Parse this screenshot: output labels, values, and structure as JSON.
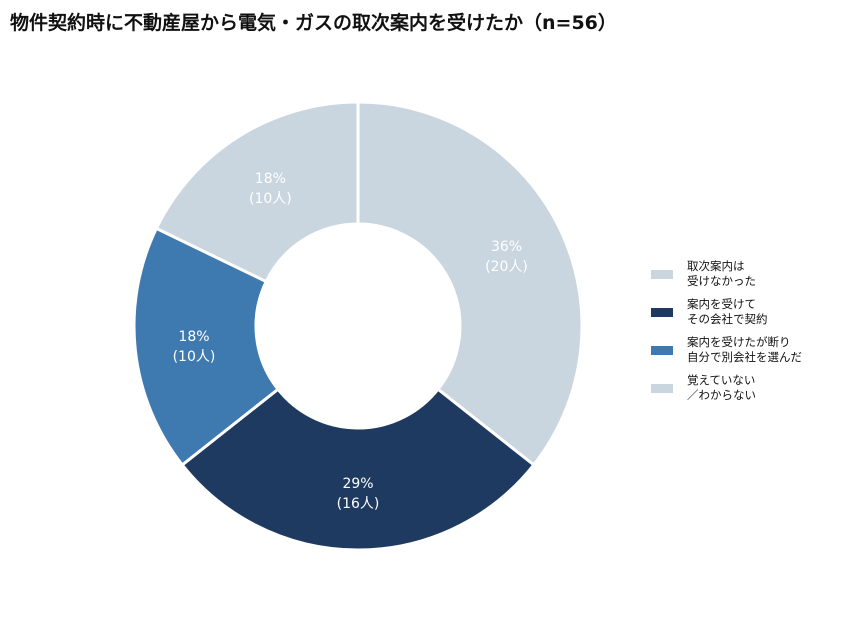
{
  "title": "物件契約時に不動産屋から電気・ガスの取次案内を受けたか（n=56）",
  "chart_data": {
    "type": "pie",
    "title": "物件契約時に不動産屋から電気・ガスの取次案内を受けたか（n=56）",
    "donut": true,
    "legend_position": "right",
    "series": [
      {
        "name": "取次案内は\n受けなかった",
        "value": 36,
        "count_label": "(20人)",
        "pct_label": "36%",
        "color": "#c9d5df"
      },
      {
        "name": "案内を受けて\nその会社で契約",
        "value": 29,
        "count_label": "(16人)",
        "pct_label": "29%",
        "color": "#1f3a60"
      },
      {
        "name": "案内を受けたが断り\n自分で別会社を選んだ",
        "value": 18,
        "count_label": "(10人)",
        "pct_label": "18%",
        "color": "#3e7ab0"
      },
      {
        "name": "覚えていない\n／わからない",
        "value": 18,
        "count_label": "(10人)",
        "pct_label": "18%",
        "color": "#c9d5df"
      }
    ]
  }
}
